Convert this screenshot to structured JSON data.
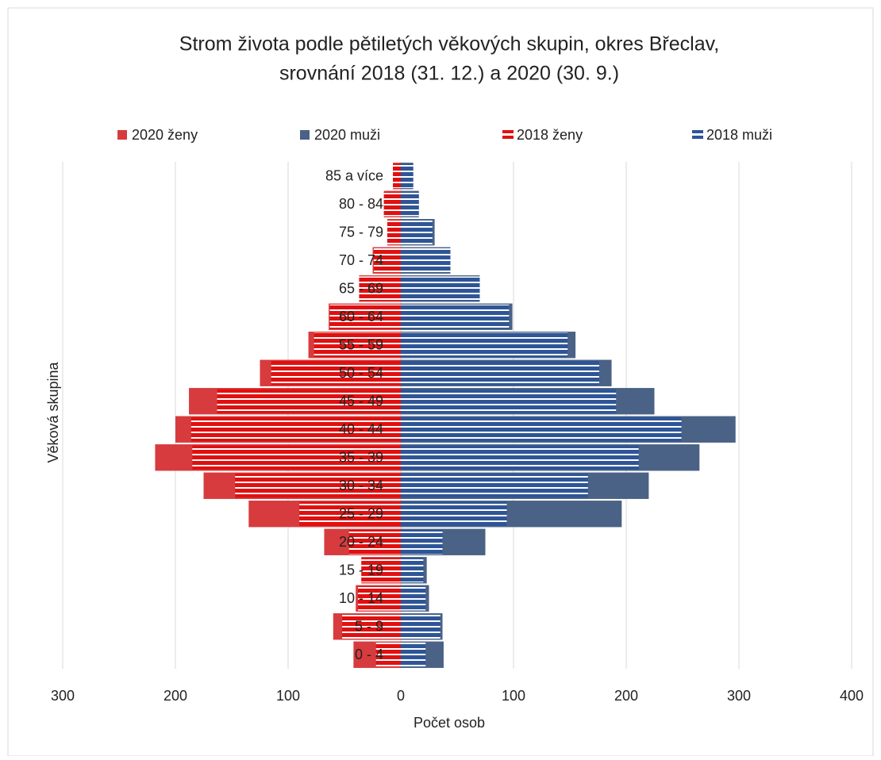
{
  "chart_data": {
    "type": "pyramid",
    "title": [
      "Strom života podle pětiletých věkových skupin, okres Břeclav,",
      "srovnání 2018 (31. 12.) a 2020  (30. 9.)"
    ],
    "x_label": "Počet osob",
    "y_label": "Věková skupina",
    "categories": [
      "0 - 4",
      "5 - 9",
      "10 - 14",
      "15 - 19",
      "20 - 24",
      "25 - 29",
      "30 - 34",
      "35 - 39",
      "40 - 44",
      "45 - 49",
      "50 - 54",
      "55 - 59",
      "60 - 64",
      "65 - 69",
      "70 - 74",
      "75 - 79",
      "80 - 84",
      "85 a více"
    ],
    "series": [
      {
        "name": "2020 ženy",
        "color": "#d73b3e",
        "side": "left",
        "pattern": "solid",
        "values": [
          42,
          60,
          40,
          35,
          68,
          135,
          175,
          218,
          200,
          188,
          125,
          82,
          64,
          37,
          25,
          12,
          15,
          7
        ]
      },
      {
        "name": "2020 muži",
        "color": "#4a6285",
        "side": "right",
        "pattern": "solid",
        "values": [
          38,
          37,
          25,
          23,
          75,
          196,
          220,
          265,
          297,
          225,
          187,
          155,
          99,
          70,
          44,
          30,
          16,
          11
        ]
      },
      {
        "name": "2018 ženy",
        "color": "#e01010",
        "side": "left",
        "pattern": "stripes",
        "values": [
          22,
          52,
          38,
          35,
          46,
          90,
          147,
          185,
          186,
          163,
          115,
          77,
          63,
          37,
          24,
          12,
          15,
          7
        ]
      },
      {
        "name": "2018 muži",
        "color": "#2e5597",
        "side": "right",
        "pattern": "stripes",
        "values": [
          22,
          35,
          22,
          20,
          37,
          94,
          166,
          211,
          249,
          191,
          176,
          148,
          96,
          70,
          44,
          28,
          16,
          11
        ]
      }
    ],
    "xlim": [
      -300,
      400
    ],
    "xticks": [
      {
        "value": -300,
        "label": "300"
      },
      {
        "value": -200,
        "label": "200"
      },
      {
        "value": -100,
        "label": "100"
      },
      0,
      100,
      200,
      300,
      400
    ],
    "grid": true,
    "legend": "top"
  }
}
